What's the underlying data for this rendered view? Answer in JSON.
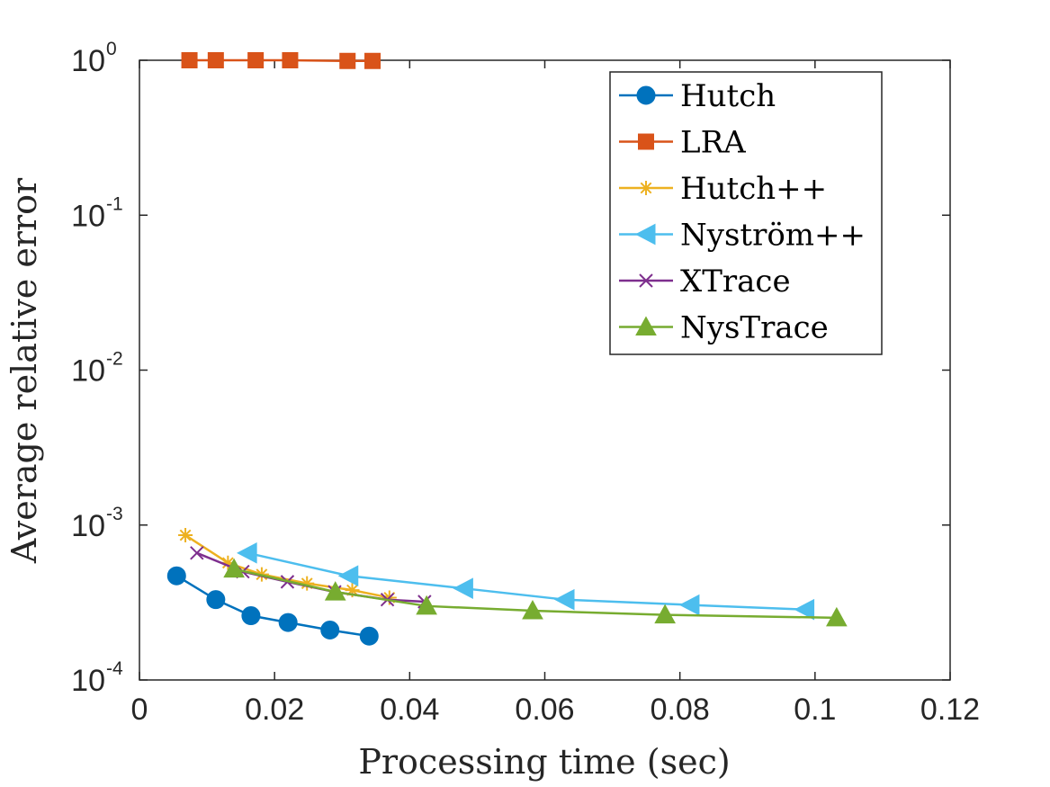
{
  "chart_data": {
    "type": "line",
    "title": "",
    "xlabel": "Processing time (sec)",
    "ylabel": "Average relative error",
    "xscale": "linear",
    "yscale": "log",
    "xlim": [
      0,
      0.12
    ],
    "ylim": [
      0.0001,
      1
    ],
    "xticks": [
      0,
      0.02,
      0.04,
      0.06,
      0.08,
      0.1,
      0.12
    ],
    "xtick_labels": [
      "0",
      "0.02",
      "0.04",
      "0.06",
      "0.08",
      "0.1",
      "0.12"
    ],
    "yticks": [
      0.0001,
      0.001,
      0.01,
      0.1,
      1
    ],
    "ytick_labels": [
      {
        "base": "10",
        "exp": "-4"
      },
      {
        "base": "10",
        "exp": "-3"
      },
      {
        "base": "10",
        "exp": "-2"
      },
      {
        "base": "10",
        "exp": "-1"
      },
      {
        "base": "10",
        "exp": "0"
      }
    ],
    "grid": false,
    "legend_position": "top-right",
    "series": [
      {
        "name": "Hutch",
        "color": "#0072BD",
        "marker": "circle",
        "x": [
          0.0055,
          0.0113,
          0.0165,
          0.022,
          0.0282,
          0.034
        ],
        "y": [
          0.00047,
          0.00033,
          0.00026,
          0.000235,
          0.00021,
          0.000192
        ]
      },
      {
        "name": "LRA",
        "color": "#D95319",
        "marker": "square",
        "x": [
          0.0074,
          0.0113,
          0.0172,
          0.0223,
          0.0308,
          0.0345
        ],
        "y": [
          1.0,
          1.0,
          1.0,
          1.0,
          0.99,
          0.99
        ]
      },
      {
        "name": "Hutch++",
        "color": "#EDB120",
        "marker": "asterisk",
        "x": [
          0.0068,
          0.0131,
          0.0181,
          0.0248,
          0.0315,
          0.037
        ],
        "y": [
          0.00086,
          0.00057,
          0.00048,
          0.00042,
          0.00038,
          0.00034
        ]
      },
      {
        "name": "Nyström++",
        "color": "#4DBEEE",
        "marker": "triangle-left",
        "x": [
          0.016,
          0.031,
          0.048,
          0.063,
          0.0815,
          0.0985
        ],
        "y": [
          0.00066,
          0.00047,
          0.00039,
          0.00033,
          0.000305,
          0.000285
        ]
      },
      {
        "name": "XTrace",
        "color": "#7E2F8E",
        "marker": "x",
        "x": [
          0.0085,
          0.0153,
          0.0219,
          0.0289,
          0.0367,
          0.0422
        ],
        "y": [
          0.00066,
          0.0005,
          0.00043,
          0.00037,
          0.00033,
          0.00032
        ]
      },
      {
        "name": "NysTrace",
        "color": "#77AC30",
        "marker": "triangle-up",
        "x": [
          0.014,
          0.029,
          0.0425,
          0.0582,
          0.0778,
          0.1032
        ],
        "y": [
          0.00052,
          0.00037,
          0.0003,
          0.00028,
          0.000263,
          0.000252
        ]
      }
    ]
  }
}
